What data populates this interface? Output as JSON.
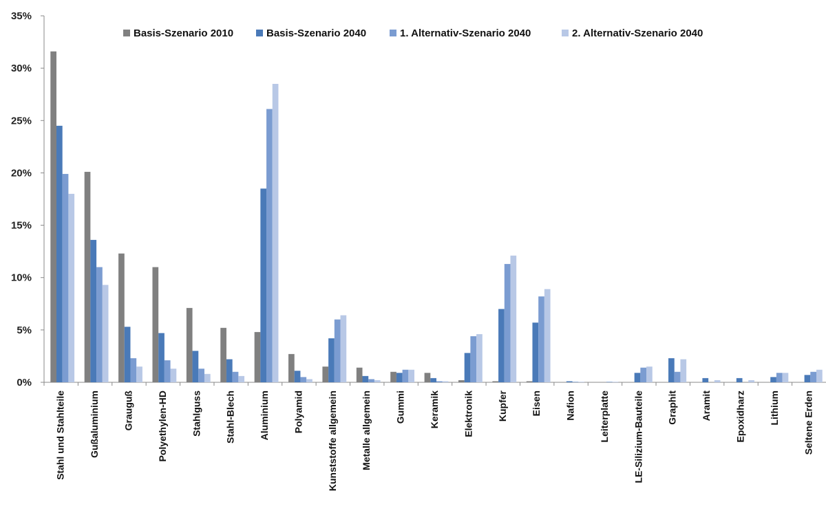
{
  "chart_data": {
    "type": "bar",
    "title": "",
    "xlabel": "",
    "ylabel": "",
    "ylim": [
      0,
      0.35
    ],
    "yticks": [
      0,
      0.05,
      0.1,
      0.15,
      0.2,
      0.25,
      0.3,
      0.35
    ],
    "ytick_labels": [
      "0%",
      "5%",
      "10%",
      "15%",
      "20%",
      "25%",
      "30%",
      "35%"
    ],
    "grid": false,
    "legend_position": "top",
    "categories": [
      "Stahl und Stahlteile",
      "Gußaluminium",
      "Grauguß",
      "Polyethylen-HD",
      "Stahlguss",
      "Stahl-Blech",
      "Aluminium",
      "Polyamid",
      "Kunststoffe allgemein",
      "Metalle allgemein",
      "Gummi",
      "Keramik",
      "Elektronik",
      "Kupfer",
      "Eisen",
      "Nafion",
      "Leiterplatte",
      "LE-Silizium-Bauteile",
      "Graphit",
      "Aramit",
      "Epoxidharz",
      "Lithium",
      "Seltene Erden"
    ],
    "series": [
      {
        "name": "Basis-Szenario 2010",
        "color": "#808080",
        "values": [
          0.316,
          0.201,
          0.123,
          0.11,
          0.071,
          0.052,
          0.048,
          0.027,
          0.015,
          0.014,
          0.01,
          0.009,
          0.002,
          0.001,
          0.001,
          0.0,
          0.0,
          0.0,
          0.0,
          0.0,
          0.0,
          0.0,
          0.0
        ]
      },
      {
        "name": "Basis-Szenario 2040",
        "color": "#4a7ab8",
        "values": [
          0.245,
          0.136,
          0.053,
          0.047,
          0.03,
          0.022,
          0.185,
          0.011,
          0.042,
          0.006,
          0.009,
          0.004,
          0.028,
          0.07,
          0.057,
          0.001,
          0.0,
          0.009,
          0.023,
          0.004,
          0.004,
          0.005,
          0.007
        ]
      },
      {
        "name": "1. Alternativ-Szenario 2040",
        "color": "#7b9cd1",
        "values": [
          0.199,
          0.11,
          0.023,
          0.021,
          0.013,
          0.01,
          0.261,
          0.005,
          0.06,
          0.003,
          0.012,
          0.001,
          0.044,
          0.113,
          0.082,
          0.0005,
          0.0005,
          0.014,
          0.01,
          0.0,
          0.0,
          0.009,
          0.01
        ]
      },
      {
        "name": "2. Alternativ-Szenario 2040",
        "color": "#b8c8e6",
        "values": [
          0.18,
          0.093,
          0.015,
          0.013,
          0.008,
          0.006,
          0.285,
          0.003,
          0.064,
          0.002,
          0.012,
          0.001,
          0.046,
          0.121,
          0.089,
          0.0005,
          0.0005,
          0.015,
          0.022,
          0.002,
          0.002,
          0.009,
          0.012
        ]
      }
    ]
  }
}
